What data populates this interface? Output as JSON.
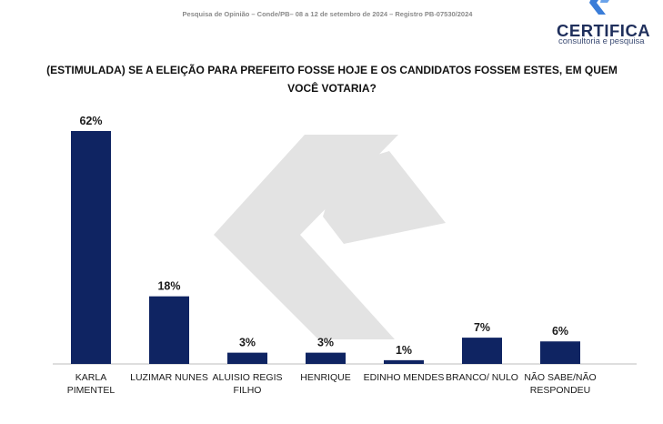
{
  "header": {
    "source_line": "Pesquisa de Opinião – Conde/PB– 08 a 12 de setembro de 2024 – Registro PB-07530/2024"
  },
  "logo": {
    "name": "CERTIFICA",
    "tagline": "consultoria e pesquisa"
  },
  "question": {
    "line1": "(ESTIMULADA) SE A ELEIÇÃO PARA PREFEITO FOSSE HOJE E OS CANDIDATOS FOSSEM ESTES, EM QUEM",
    "line2": "VOCÊ VOTARIA?"
  },
  "colors": {
    "bar": "#0f2462",
    "watermark": "#e3e3e3",
    "logo_blue": "#3a7dd8"
  },
  "chart_data": {
    "type": "bar",
    "title": "(ESTIMULADA) SE A ELEIÇÃO PARA PREFEITO FOSSE HOJE E OS CANDIDATOS FOSSEM ESTES, EM QUEM VOCÊ VOTARIA?",
    "categories": [
      [
        "KARLA",
        "PIMENTEL"
      ],
      [
        "LUZIMAR NUNES"
      ],
      [
        "ALUISIO REGIS",
        "FILHO"
      ],
      [
        "HENRIQUE"
      ],
      [
        "EDINHO MENDES"
      ],
      [
        "BRANCO/ NULO"
      ],
      [
        "NÃO SABE/NÃO",
        "RESPONDEU"
      ]
    ],
    "values": [
      62,
      18,
      3,
      3,
      1,
      7,
      6
    ],
    "value_labels": [
      "62%",
      "18%",
      "3%",
      "3%",
      "1%",
      "7%",
      "6%"
    ],
    "ylim": [
      0,
      62
    ],
    "grid": false,
    "legend": "none"
  }
}
